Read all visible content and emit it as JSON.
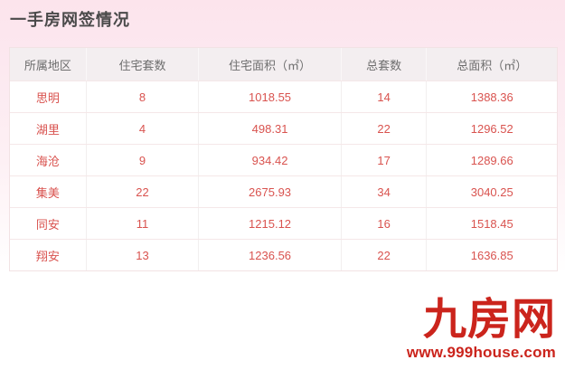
{
  "page": {
    "title": "一手房网签情况"
  },
  "table": {
    "headers": [
      "所属地区",
      "住宅套数",
      "住宅面积（㎡）",
      "总套数",
      "总面积（㎡）"
    ],
    "rows": [
      [
        "思明",
        "8",
        "1018.55",
        "14",
        "1388.36"
      ],
      [
        "湖里",
        "4",
        "498.31",
        "22",
        "1296.52"
      ],
      [
        "海沧",
        "9",
        "934.42",
        "17",
        "1289.66"
      ],
      [
        "集美",
        "22",
        "2675.93",
        "34",
        "3040.25"
      ],
      [
        "同安",
        "11",
        "1215.12",
        "16",
        "1518.45"
      ],
      [
        "翔安",
        "13",
        "1236.56",
        "22",
        "1636.85"
      ]
    ]
  },
  "footer": {
    "logo_text": "九房网",
    "website": "www.999house.com"
  },
  "colors": {
    "page_pink": "#fce4ec",
    "header_bg": "#f3eef0",
    "cell_text_red": "#d9534f",
    "logo_red": "#cb241c",
    "title_gray": "#4a4a4a"
  }
}
